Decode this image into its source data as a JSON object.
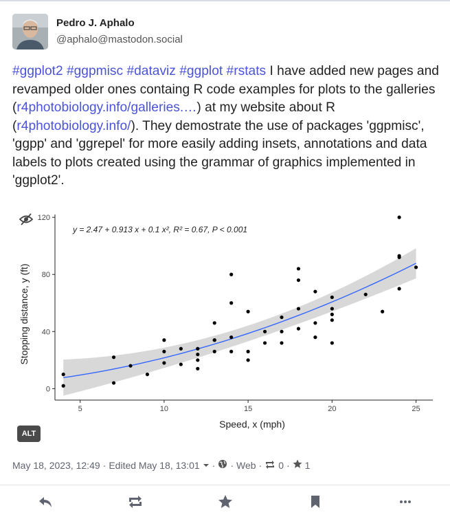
{
  "author": {
    "name": "Pedro J. Aphalo",
    "handle": "@aphalo@mastodon.social"
  },
  "post": {
    "hashtags": [
      "#ggplot2",
      "#ggpmisc",
      "#dataviz",
      "#ggplot",
      "#rstats"
    ],
    "text_1": "I have added new pages and revamped older ones containg R code examples for plots to the galleries (",
    "link_1": "r4photobiology.info/galleries.…",
    "text_2": ") at my website about R (",
    "link_2": "r4photobiology.info/",
    "text_3": "). They demostrate the use of packages 'ggpmisc', 'ggpp' and 'ggrepel' for more easily adding insets, annotations and data labels to plots created using the grammar of graphics implemented in 'ggplot2'."
  },
  "media": {
    "alt_label": "ALT"
  },
  "meta": {
    "date": "May 18, 2023, 12:49",
    "edited": "Edited May 18, 13:01",
    "visibility": "Web",
    "boosts": "0",
    "favourites": "1"
  },
  "chart_data": {
    "type": "scatter",
    "xlabel": "Speed, x (mph)",
    "ylabel": "Stopping distance, y (ft)",
    "annotation": "y = 2.47 + 0.913 x + 0.1 x², R² = 0.67, P < 0.001",
    "xlim": [
      3.5,
      26
    ],
    "ylim": [
      -8,
      122
    ],
    "x_ticks": [
      5,
      10,
      15,
      20,
      25
    ],
    "y_ticks": [
      0,
      40,
      80,
      120
    ],
    "points": [
      [
        4,
        2
      ],
      [
        4,
        10
      ],
      [
        7,
        4
      ],
      [
        7,
        22
      ],
      [
        8,
        16
      ],
      [
        9,
        10
      ],
      [
        10,
        18
      ],
      [
        10,
        26
      ],
      [
        10,
        34
      ],
      [
        11,
        17
      ],
      [
        11,
        28
      ],
      [
        12,
        14
      ],
      [
        12,
        20
      ],
      [
        12,
        24
      ],
      [
        12,
        28
      ],
      [
        13,
        26
      ],
      [
        13,
        34
      ],
      [
        13,
        34
      ],
      [
        13,
        46
      ],
      [
        14,
        26
      ],
      [
        14,
        36
      ],
      [
        14,
        60
      ],
      [
        14,
        80
      ],
      [
        15,
        20
      ],
      [
        15,
        26
      ],
      [
        15,
        54
      ],
      [
        16,
        32
      ],
      [
        16,
        40
      ],
      [
        17,
        32
      ],
      [
        17,
        40
      ],
      [
        17,
        50
      ],
      [
        18,
        42
      ],
      [
        18,
        56
      ],
      [
        18,
        76
      ],
      [
        18,
        84
      ],
      [
        19,
        36
      ],
      [
        19,
        46
      ],
      [
        19,
        68
      ],
      [
        20,
        32
      ],
      [
        20,
        48
      ],
      [
        20,
        52
      ],
      [
        20,
        56
      ],
      [
        20,
        64
      ],
      [
        22,
        66
      ],
      [
        23,
        54
      ],
      [
        24,
        70
      ],
      [
        24,
        92
      ],
      [
        24,
        93
      ],
      [
        24,
        120
      ],
      [
        25,
        85
      ]
    ],
    "fit": {
      "intercept": 2.47,
      "b1": 0.913,
      "b2": 0.1
    },
    "colors": {
      "fit_line": "#3366ff",
      "band": "#d4d4d4",
      "points": "#000000"
    }
  },
  "colors": {
    "link": "#4a53d9",
    "text": "#222222",
    "muted": "#606470"
  }
}
